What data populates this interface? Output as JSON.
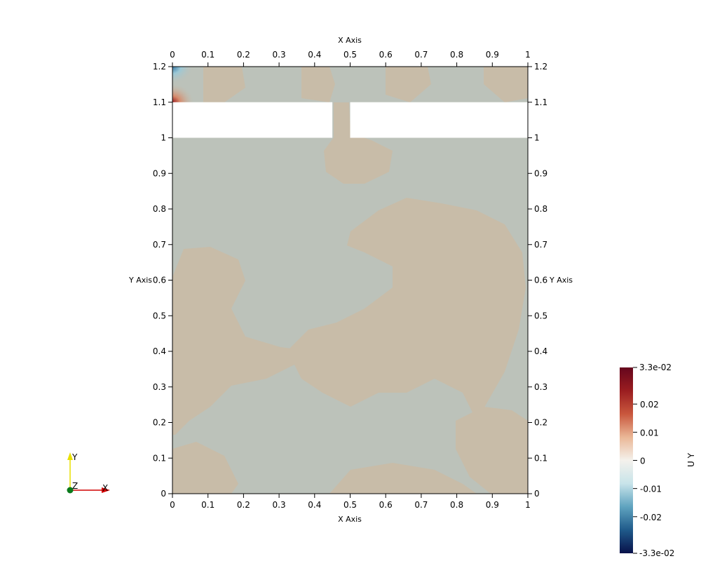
{
  "axes": {
    "x_axis_title": "X Axis",
    "y_axis_title": "Y Axis",
    "x_ticks": [
      "0",
      "0.1",
      "0.2",
      "0.3",
      "0.4",
      "0.5",
      "0.6",
      "0.7",
      "0.8",
      "0.9",
      "1"
    ],
    "y_ticks": [
      "0",
      "0.1",
      "0.2",
      "0.3",
      "0.4",
      "0.5",
      "0.6",
      "0.7",
      "0.8",
      "0.9",
      "1",
      "1.1",
      "1.2"
    ],
    "x_range": [
      0,
      1
    ],
    "y_range": [
      0,
      1.2
    ]
  },
  "domain": {
    "channel_band_y": [
      1.0,
      1.1
    ],
    "solid_blocks_x": [
      [
        0,
        0.45
      ],
      [
        0.5,
        1.0
      ]
    ],
    "gap_x": [
      0.45,
      0.5
    ]
  },
  "colorbar": {
    "title": "U Y",
    "max_label": "3.3e-02",
    "min_label": "-3.3e-02",
    "ticks": [
      "0.02",
      "0.01",
      "0",
      "-0.01",
      "-0.02"
    ],
    "tick_values": [
      0.02,
      0.01,
      0,
      -0.01,
      -0.02
    ],
    "range": [
      -0.033,
      0.033
    ],
    "colors": [
      "#08114a",
      "#1f5a8a",
      "#5fa3bf",
      "#c8e4ea",
      "#f4f1ec",
      "#eab796",
      "#c9573d",
      "#9a1d20",
      "#65061d"
    ]
  },
  "orientation": {
    "y_label": "Y",
    "z_label": "Z",
    "x_label": "X"
  },
  "field_colors": {
    "neutral": "#bcc2ba",
    "warm": "#c8bca8",
    "warm_light": "#c6b9a3"
  }
}
